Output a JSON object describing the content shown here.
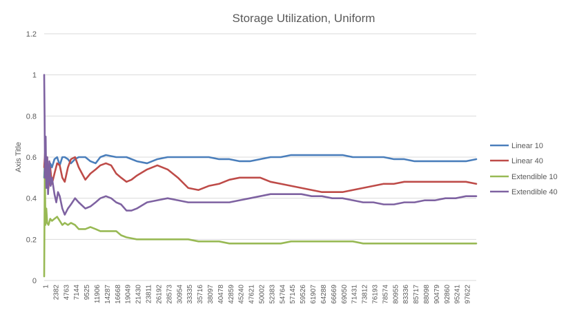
{
  "chart_data": {
    "type": "line",
    "title": "Storage Utilization, Uniform",
    "ylabel": "Axis Title",
    "xlabel": "",
    "ylim": [
      0,
      1.2
    ],
    "y_ticks": [
      "0",
      "0.2",
      "0.4",
      "0.6",
      "0.8",
      "1",
      "1.2"
    ],
    "x_ticks": [
      "1",
      "2382",
      "4763",
      "7144",
      "9525",
      "11906",
      "14287",
      "16668",
      "19049",
      "21430",
      "23811",
      "26192",
      "28573",
      "30954",
      "33335",
      "35716",
      "38097",
      "40478",
      "42859",
      "45240",
      "47621",
      "50002",
      "52383",
      "54764",
      "57145",
      "59526",
      "61907",
      "64288",
      "66669",
      "69050",
      "71431",
      "73812",
      "76193",
      "78574",
      "80955",
      "83336",
      "85717",
      "88098",
      "90479",
      "92860",
      "95241",
      "97622"
    ],
    "x_range": [
      1,
      100000
    ],
    "grid": true,
    "legend_position": "right",
    "series": [
      {
        "name": "Linear 10",
        "color": "#4a7ebb",
        "points": [
          [
            1,
            0.5
          ],
          [
            200,
            0.6
          ],
          [
            400,
            0.48
          ],
          [
            700,
            0.58
          ],
          [
            1000,
            0.5
          ],
          [
            1400,
            0.57
          ],
          [
            1800,
            0.55
          ],
          [
            2382,
            0.59
          ],
          [
            3000,
            0.6
          ],
          [
            3600,
            0.56
          ],
          [
            4200,
            0.6
          ],
          [
            4763,
            0.6
          ],
          [
            5500,
            0.59
          ],
          [
            6200,
            0.57
          ],
          [
            7144,
            0.59
          ],
          [
            8000,
            0.6
          ],
          [
            9525,
            0.6
          ],
          [
            10700,
            0.58
          ],
          [
            11906,
            0.57
          ],
          [
            13000,
            0.6
          ],
          [
            14287,
            0.61
          ],
          [
            16668,
            0.6
          ],
          [
            19049,
            0.6
          ],
          [
            21430,
            0.58
          ],
          [
            23811,
            0.57
          ],
          [
            26192,
            0.59
          ],
          [
            28573,
            0.6
          ],
          [
            30954,
            0.6
          ],
          [
            33335,
            0.6
          ],
          [
            35716,
            0.6
          ],
          [
            38097,
            0.6
          ],
          [
            40478,
            0.59
          ],
          [
            42859,
            0.59
          ],
          [
            45240,
            0.58
          ],
          [
            47621,
            0.58
          ],
          [
            50002,
            0.59
          ],
          [
            52383,
            0.6
          ],
          [
            54764,
            0.6
          ],
          [
            57145,
            0.61
          ],
          [
            59526,
            0.61
          ],
          [
            61907,
            0.61
          ],
          [
            64288,
            0.61
          ],
          [
            66669,
            0.61
          ],
          [
            69050,
            0.61
          ],
          [
            71431,
            0.6
          ],
          [
            73812,
            0.6
          ],
          [
            76193,
            0.6
          ],
          [
            78574,
            0.6
          ],
          [
            80955,
            0.59
          ],
          [
            83336,
            0.59
          ],
          [
            85717,
            0.58
          ],
          [
            88098,
            0.58
          ],
          [
            90479,
            0.58
          ],
          [
            92860,
            0.58
          ],
          [
            95241,
            0.58
          ],
          [
            97622,
            0.58
          ],
          [
            100000,
            0.59
          ]
        ]
      },
      {
        "name": "Linear 40",
        "color": "#be4b48",
        "points": [
          [
            1,
            0.55
          ],
          [
            200,
            0.62
          ],
          [
            400,
            0.5
          ],
          [
            700,
            0.6
          ],
          [
            1000,
            0.45
          ],
          [
            1400,
            0.55
          ],
          [
            1800,
            0.47
          ],
          [
            2382,
            0.52
          ],
          [
            3000,
            0.57
          ],
          [
            3600,
            0.56
          ],
          [
            4200,
            0.5
          ],
          [
            4763,
            0.48
          ],
          [
            5500,
            0.55
          ],
          [
            6200,
            0.59
          ],
          [
            7144,
            0.6
          ],
          [
            8000,
            0.55
          ],
          [
            9525,
            0.49
          ],
          [
            10700,
            0.52
          ],
          [
            11906,
            0.54
          ],
          [
            13000,
            0.56
          ],
          [
            14287,
            0.57
          ],
          [
            15500,
            0.56
          ],
          [
            16668,
            0.52
          ],
          [
            17800,
            0.5
          ],
          [
            19049,
            0.48
          ],
          [
            20200,
            0.49
          ],
          [
            21430,
            0.51
          ],
          [
            23811,
            0.54
          ],
          [
            26192,
            0.56
          ],
          [
            28573,
            0.54
          ],
          [
            30954,
            0.5
          ],
          [
            33335,
            0.45
          ],
          [
            35716,
            0.44
          ],
          [
            38097,
            0.46
          ],
          [
            40478,
            0.47
          ],
          [
            42859,
            0.49
          ],
          [
            45240,
            0.5
          ],
          [
            47621,
            0.5
          ],
          [
            50002,
            0.5
          ],
          [
            52383,
            0.48
          ],
          [
            54764,
            0.47
          ],
          [
            57145,
            0.46
          ],
          [
            59526,
            0.45
          ],
          [
            61907,
            0.44
          ],
          [
            64288,
            0.43
          ],
          [
            66669,
            0.43
          ],
          [
            69050,
            0.43
          ],
          [
            71431,
            0.44
          ],
          [
            73812,
            0.45
          ],
          [
            76193,
            0.46
          ],
          [
            78574,
            0.47
          ],
          [
            80955,
            0.47
          ],
          [
            83336,
            0.48
          ],
          [
            85717,
            0.48
          ],
          [
            88098,
            0.48
          ],
          [
            90479,
            0.48
          ],
          [
            92860,
            0.48
          ],
          [
            95241,
            0.48
          ],
          [
            97622,
            0.48
          ],
          [
            100000,
            0.47
          ]
        ]
      },
      {
        "name": "Extendible 10",
        "color": "#98b954",
        "points": [
          [
            1,
            0.02
          ],
          [
            150,
            0.55
          ],
          [
            300,
            0.27
          ],
          [
            500,
            0.35
          ],
          [
            700,
            0.28
          ],
          [
            1000,
            0.27
          ],
          [
            1400,
            0.3
          ],
          [
            1800,
            0.29
          ],
          [
            2382,
            0.3
          ],
          [
            3000,
            0.31
          ],
          [
            3600,
            0.29
          ],
          [
            4200,
            0.27
          ],
          [
            4763,
            0.28
          ],
          [
            5500,
            0.27
          ],
          [
            6200,
            0.28
          ],
          [
            7144,
            0.27
          ],
          [
            8000,
            0.25
          ],
          [
            9525,
            0.25
          ],
          [
            10700,
            0.26
          ],
          [
            11906,
            0.25
          ],
          [
            13000,
            0.24
          ],
          [
            14287,
            0.24
          ],
          [
            16668,
            0.24
          ],
          [
            17800,
            0.22
          ],
          [
            19049,
            0.21
          ],
          [
            21430,
            0.2
          ],
          [
            23811,
            0.2
          ],
          [
            26192,
            0.2
          ],
          [
            28573,
            0.2
          ],
          [
            30954,
            0.2
          ],
          [
            33335,
            0.2
          ],
          [
            35716,
            0.19
          ],
          [
            38097,
            0.19
          ],
          [
            40478,
            0.19
          ],
          [
            42859,
            0.18
          ],
          [
            45240,
            0.18
          ],
          [
            47621,
            0.18
          ],
          [
            50002,
            0.18
          ],
          [
            52383,
            0.18
          ],
          [
            54764,
            0.18
          ],
          [
            57145,
            0.19
          ],
          [
            59526,
            0.19
          ],
          [
            61907,
            0.19
          ],
          [
            64288,
            0.19
          ],
          [
            66669,
            0.19
          ],
          [
            69050,
            0.19
          ],
          [
            71431,
            0.19
          ],
          [
            73812,
            0.18
          ],
          [
            76193,
            0.18
          ],
          [
            78574,
            0.18
          ],
          [
            80955,
            0.18
          ],
          [
            83336,
            0.18
          ],
          [
            85717,
            0.18
          ],
          [
            88098,
            0.18
          ],
          [
            90479,
            0.18
          ],
          [
            92860,
            0.18
          ],
          [
            95241,
            0.18
          ],
          [
            97622,
            0.18
          ],
          [
            100000,
            0.18
          ]
        ]
      },
      {
        "name": "Extendible 40",
        "color": "#7e62a1",
        "points": [
          [
            1,
            1.0
          ],
          [
            100,
            0.8
          ],
          [
            200,
            0.5
          ],
          [
            350,
            0.7
          ],
          [
            500,
            0.45
          ],
          [
            700,
            0.6
          ],
          [
            900,
            0.42
          ],
          [
            1200,
            0.58
          ],
          [
            1500,
            0.46
          ],
          [
            1800,
            0.5
          ],
          [
            2382,
            0.42
          ],
          [
            2800,
            0.38
          ],
          [
            3200,
            0.43
          ],
          [
            3600,
            0.41
          ],
          [
            4200,
            0.35
          ],
          [
            4763,
            0.32
          ],
          [
            5500,
            0.35
          ],
          [
            6200,
            0.37
          ],
          [
            7144,
            0.4
          ],
          [
            8000,
            0.38
          ],
          [
            9525,
            0.35
          ],
          [
            10700,
            0.36
          ],
          [
            11906,
            0.38
          ],
          [
            13000,
            0.4
          ],
          [
            14287,
            0.41
          ],
          [
            15500,
            0.4
          ],
          [
            16668,
            0.38
          ],
          [
            17800,
            0.37
          ],
          [
            19049,
            0.34
          ],
          [
            20200,
            0.34
          ],
          [
            21430,
            0.35
          ],
          [
            23811,
            0.38
          ],
          [
            26192,
            0.39
          ],
          [
            28573,
            0.4
          ],
          [
            30954,
            0.39
          ],
          [
            33335,
            0.38
          ],
          [
            35716,
            0.38
          ],
          [
            38097,
            0.38
          ],
          [
            40478,
            0.38
          ],
          [
            42859,
            0.38
          ],
          [
            45240,
            0.39
          ],
          [
            47621,
            0.4
          ],
          [
            50002,
            0.41
          ],
          [
            52383,
            0.42
          ],
          [
            54764,
            0.42
          ],
          [
            57145,
            0.42
          ],
          [
            59526,
            0.42
          ],
          [
            61907,
            0.41
          ],
          [
            64288,
            0.41
          ],
          [
            66669,
            0.4
          ],
          [
            69050,
            0.4
          ],
          [
            71431,
            0.39
          ],
          [
            73812,
            0.38
          ],
          [
            76193,
            0.38
          ],
          [
            78574,
            0.37
          ],
          [
            80955,
            0.37
          ],
          [
            83336,
            0.38
          ],
          [
            85717,
            0.38
          ],
          [
            88098,
            0.39
          ],
          [
            90479,
            0.39
          ],
          [
            92860,
            0.4
          ],
          [
            95241,
            0.4
          ],
          [
            97622,
            0.41
          ],
          [
            100000,
            0.41
          ]
        ]
      }
    ]
  }
}
